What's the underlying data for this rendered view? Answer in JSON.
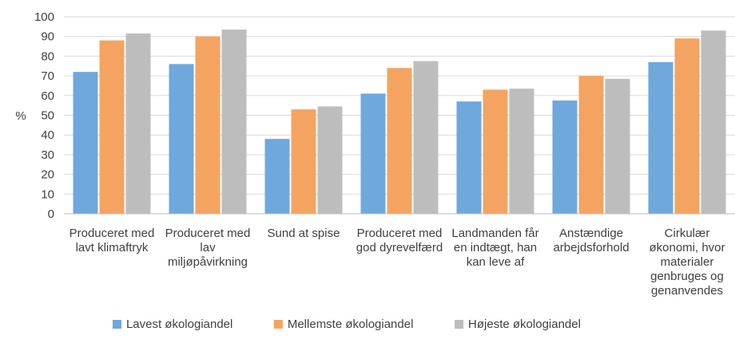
{
  "chart_data": {
    "type": "bar",
    "title": "",
    "xlabel": "",
    "ylabel": "%",
    "ylim": [
      0,
      100
    ],
    "yticks": [
      0,
      10,
      20,
      30,
      40,
      50,
      60,
      70,
      80,
      90,
      100
    ],
    "grid": true,
    "legend_position": "bottom",
    "categories": [
      [
        "Produceret med",
        "lavt klimaftryk"
      ],
      [
        "Produceret med",
        "lav",
        "miljøpåvirkning"
      ],
      [
        "Sund at spise"
      ],
      [
        "Produceret med",
        "god dyrevelfærd"
      ],
      [
        "Landmanden får",
        "en indtægt, han",
        "kan leve af"
      ],
      [
        "Anstændige",
        "arbejdsforhold"
      ],
      [
        "Cirkulær",
        "økonomi, hvor",
        "materialer",
        "genbruges og",
        "genanvendes"
      ]
    ],
    "series": [
      {
        "name": "Lavest økologiandel",
        "color": "#6fa8dc",
        "values": [
          72,
          76,
          38,
          61,
          57,
          57.5,
          77
        ]
      },
      {
        "name": "Mellemste økologiandel",
        "color": "#f4a460",
        "values": [
          88,
          90,
          53,
          74,
          63,
          70,
          89
        ]
      },
      {
        "name": "Højeste økologiandel",
        "color": "#bdbdbd",
        "values": [
          91.5,
          93.5,
          54.5,
          77.5,
          63.5,
          68.5,
          93
        ]
      }
    ]
  }
}
